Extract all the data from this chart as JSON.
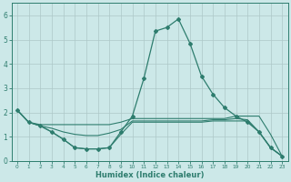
{
  "xlabel": "Humidex (Indice chaleur)",
  "x": [
    0,
    1,
    2,
    3,
    4,
    5,
    6,
    7,
    8,
    9,
    10,
    11,
    12,
    13,
    14,
    15,
    16,
    17,
    18,
    19,
    20,
    21,
    22,
    23
  ],
  "line_main": [
    2.1,
    1.6,
    1.45,
    1.2,
    0.9,
    0.55,
    0.5,
    0.5,
    0.55,
    1.2,
    1.85,
    3.4,
    5.35,
    5.5,
    5.85,
    4.85,
    3.5,
    2.75,
    2.2,
    1.85,
    1.6,
    1.2,
    0.55,
    0.2
  ],
  "line_upper": [
    2.1,
    1.6,
    1.5,
    1.5,
    1.5,
    1.5,
    1.5,
    1.5,
    1.5,
    1.6,
    1.75,
    1.75,
    1.75,
    1.75,
    1.75,
    1.75,
    1.75,
    1.75,
    1.75,
    1.85,
    1.85,
    1.85,
    1.1,
    0.2
  ],
  "line_lower": [
    2.1,
    1.6,
    1.45,
    1.2,
    0.9,
    0.55,
    0.5,
    0.5,
    0.55,
    1.1,
    1.6,
    1.6,
    1.6,
    1.6,
    1.6,
    1.6,
    1.6,
    1.65,
    1.65,
    1.65,
    1.65,
    1.2,
    0.55,
    0.2
  ],
  "line_mid": [
    2.1,
    1.6,
    1.45,
    1.35,
    1.2,
    1.1,
    1.05,
    1.05,
    1.15,
    1.3,
    1.65,
    1.65,
    1.65,
    1.65,
    1.65,
    1.65,
    1.65,
    1.7,
    1.7,
    1.75,
    1.7,
    1.2,
    0.55,
    0.2
  ],
  "color": "#2e7d6e",
  "bg_color": "#cce8e8",
  "grid_color": "#adc8c8",
  "ylim": [
    0,
    6.5
  ],
  "xlim": [
    -0.5,
    23.5
  ]
}
